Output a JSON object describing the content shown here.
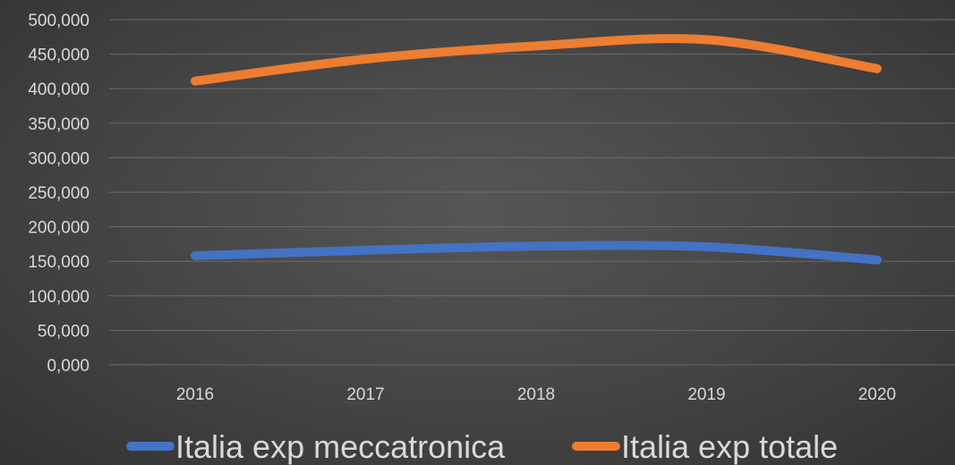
{
  "chart_data": {
    "type": "line",
    "categories": [
      "2016",
      "2017",
      "2018",
      "2019",
      "2020"
    ],
    "series": [
      {
        "name": "Italia exp meccatronica",
        "values": [
          158,
          166,
          172,
          171,
          152
        ],
        "color": "#4472c4"
      },
      {
        "name": "Italia exp totale",
        "values": [
          411,
          443,
          462,
          471,
          429
        ],
        "color": "#ed7d31"
      }
    ],
    "y_ticks": [
      "0,000",
      "50,000",
      "100,000",
      "150,000",
      "200,000",
      "250,000",
      "300,000",
      "350,000",
      "400,000",
      "450,000",
      "500,000"
    ],
    "ylim": [
      0,
      500
    ],
    "grid": true,
    "legend_position": "bottom",
    "background_color": "#444444",
    "gridline_color": "#6b6b6b",
    "text_color": "#d9d9d9"
  }
}
